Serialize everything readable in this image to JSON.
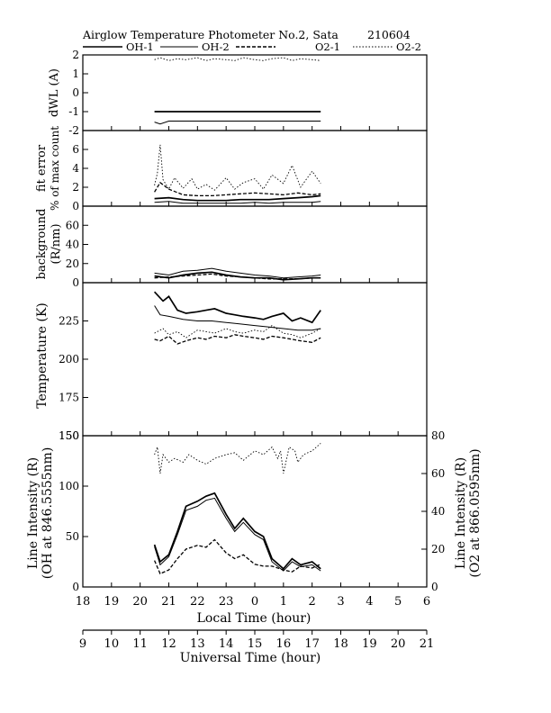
{
  "header": {
    "title": "Airglow Temperature Photometer No.2, Sata",
    "code": "210604"
  },
  "legend": [
    {
      "name": "OH-1",
      "style": "solid-thick"
    },
    {
      "name": "OH-2",
      "style": "solid"
    },
    {
      "name": "O2-1",
      "style": "dashed"
    },
    {
      "name": "O2-2",
      "style": "dotted"
    }
  ],
  "axes": {
    "local_time_label": "Local Time (hour)",
    "local_time_ticks": [
      "18",
      "19",
      "20",
      "21",
      "22",
      "23",
      "0",
      "1",
      "2",
      "3",
      "4",
      "5",
      "6"
    ],
    "ut_label": "Universal Time (hour)",
    "ut_ticks": [
      "9",
      "10",
      "11",
      "12",
      "13",
      "14",
      "15",
      "16",
      "17",
      "18",
      "19",
      "20",
      "21"
    ]
  },
  "chart_data": [
    {
      "type": "line",
      "ylabel": "dWL (A)",
      "ylim": [
        -2,
        2
      ],
      "yticks": [
        "2",
        "1",
        "0",
        "-1",
        "-2"
      ],
      "x_unit": "local time hours after 18:00",
      "series": [
        {
          "name": "OH-1",
          "x": [
            20.5,
            21,
            21.5,
            22,
            22.5,
            23,
            23.5,
            0,
            0.5,
            1,
            1.5,
            2,
            2.3
          ],
          "y": [
            -1.0,
            -1.0,
            -1.0,
            -1.0,
            -1.0,
            -1.0,
            -1.0,
            -1.0,
            -1.0,
            -1.0,
            -1.0,
            -1.0,
            -1.0
          ]
        },
        {
          "name": "OH-2",
          "x": [
            20.5,
            20.7,
            21,
            21.5,
            22,
            22.5,
            23,
            23.5,
            0,
            0.5,
            1,
            1.5,
            2,
            2.3
          ],
          "y": [
            -1.55,
            -1.65,
            -1.5,
            -1.5,
            -1.5,
            -1.5,
            -1.5,
            -1.5,
            -1.5,
            -1.5,
            -1.5,
            -1.5,
            -1.5,
            -1.5
          ]
        },
        {
          "name": "O2-2",
          "x": [
            20.5,
            20.7,
            21,
            21.3,
            21.6,
            22,
            22.3,
            22.6,
            23,
            23.3,
            23.6,
            0,
            0.3,
            0.6,
            1,
            1.3,
            1.6,
            2,
            2.3
          ],
          "y": [
            1.75,
            1.85,
            1.7,
            1.8,
            1.75,
            1.85,
            1.7,
            1.8,
            1.75,
            1.7,
            1.85,
            1.75,
            1.7,
            1.8,
            1.85,
            1.7,
            1.8,
            1.75,
            1.7
          ]
        }
      ]
    },
    {
      "type": "line",
      "ylabel": "fit error",
      "ylabel2": "% of max count",
      "ylim": [
        0,
        8
      ],
      "yticks": [
        "6",
        "4",
        "2",
        "0"
      ],
      "series": [
        {
          "name": "OH-1",
          "x": [
            20.5,
            21,
            21.5,
            22,
            22.5,
            23,
            23.5,
            0,
            0.5,
            1,
            1.5,
            2,
            2.3
          ],
          "y": [
            0.8,
            0.9,
            0.7,
            0.6,
            0.6,
            0.6,
            0.7,
            0.7,
            0.7,
            0.8,
            0.9,
            1.0,
            1.1
          ]
        },
        {
          "name": "OH-2",
          "x": [
            20.5,
            21,
            21.5,
            22,
            22.5,
            23,
            23.5,
            0,
            0.5,
            1,
            1.5,
            2,
            2.3
          ],
          "y": [
            0.4,
            0.5,
            0.3,
            0.3,
            0.3,
            0.3,
            0.3,
            0.4,
            0.3,
            0.4,
            0.4,
            0.4,
            0.5
          ]
        },
        {
          "name": "O2-1",
          "x": [
            20.5,
            20.7,
            21,
            21.5,
            22,
            22.5,
            23,
            23.5,
            0,
            0.5,
            1,
            1.5,
            2,
            2.3
          ],
          "y": [
            1.5,
            2.5,
            1.8,
            1.2,
            1.1,
            1.1,
            1.2,
            1.3,
            1.4,
            1.3,
            1.2,
            1.4,
            1.2,
            1.3
          ]
        },
        {
          "name": "O2-2",
          "x": [
            20.5,
            20.6,
            20.7,
            20.8,
            21,
            21.2,
            21.5,
            21.8,
            22,
            22.3,
            22.6,
            23,
            23.3,
            23.6,
            0,
            0.3,
            0.6,
            1,
            1.3,
            1.6,
            2,
            2.3
          ],
          "y": [
            2.2,
            3.5,
            6.5,
            2.8,
            1.8,
            3.0,
            1.9,
            2.9,
            1.8,
            2.3,
            1.7,
            3.0,
            1.8,
            2.5,
            2.9,
            1.8,
            3.3,
            2.4,
            4.3,
            2.0,
            3.7,
            2.4
          ]
        }
      ]
    },
    {
      "type": "line",
      "ylabel": "background",
      "ylabel2": "(R/nm)",
      "ylim": [
        0,
        80
      ],
      "yticks": [
        "60",
        "40",
        "20",
        "0"
      ],
      "series": [
        {
          "name": "OH-1",
          "x": [
            20.5,
            21,
            21.5,
            22,
            22.5,
            23,
            23.5,
            0,
            0.5,
            1,
            1.5,
            2,
            2.3
          ],
          "y": [
            7,
            5,
            8,
            10,
            11,
            8,
            6,
            5,
            5,
            3,
            4,
            5,
            5
          ]
        },
        {
          "name": "OH-2",
          "x": [
            20.5,
            21,
            21.5,
            22,
            22.5,
            23,
            23.5,
            0,
            0.5,
            1,
            1.5,
            2,
            2.3
          ],
          "y": [
            10,
            8,
            12,
            13,
            15,
            12,
            10,
            8,
            7,
            5,
            6,
            7,
            8
          ]
        },
        {
          "name": "O2-1",
          "x": [
            20.5,
            21,
            21.5,
            22,
            22.5,
            23,
            23.5,
            0,
            0.5,
            1,
            1.5,
            2,
            2.3
          ],
          "y": [
            5,
            6,
            7,
            8,
            9,
            7,
            6,
            5,
            4,
            4,
            4,
            5,
            5
          ]
        }
      ]
    },
    {
      "type": "line",
      "ylabel": "Temperature (K)",
      "ylim": [
        150,
        250
      ],
      "yticks": [
        "225",
        "200",
        "175",
        "150"
      ],
      "series": [
        {
          "name": "OH-1",
          "x": [
            20.5,
            20.8,
            21,
            21.3,
            21.6,
            22,
            22.3,
            22.6,
            23,
            23.3,
            23.6,
            0,
            0.3,
            0.6,
            1,
            1.3,
            1.6,
            2,
            2.3
          ],
          "y": [
            244,
            238,
            241,
            232,
            230,
            231,
            232,
            233,
            230,
            229,
            228,
            227,
            226,
            228,
            230,
            225,
            227,
            224,
            232
          ]
        },
        {
          "name": "OH-2",
          "x": [
            20.5,
            20.7,
            21,
            21.5,
            22,
            22.5,
            23,
            23.5,
            0,
            0.5,
            1,
            1.5,
            2,
            2.3
          ],
          "y": [
            235,
            229,
            228,
            226,
            225,
            225,
            224,
            223,
            222,
            221,
            220,
            219,
            219,
            220
          ]
        },
        {
          "name": "O2-1",
          "x": [
            20.5,
            20.7,
            21,
            21.3,
            21.6,
            22,
            22.3,
            22.6,
            23,
            23.3,
            23.6,
            0,
            0.3,
            0.6,
            1,
            1.3,
            1.6,
            2,
            2.3
          ],
          "y": [
            213,
            212,
            215,
            210,
            212,
            214,
            213,
            215,
            214,
            216,
            215,
            214,
            213,
            215,
            214,
            213,
            212,
            211,
            214
          ]
        },
        {
          "name": "O2-2",
          "x": [
            20.5,
            20.8,
            21,
            21.3,
            21.6,
            22,
            22.3,
            22.6,
            23,
            23.3,
            23.6,
            0,
            0.3,
            0.6,
            1,
            1.3,
            1.6,
            2,
            2.3
          ],
          "y": [
            217,
            220,
            216,
            218,
            214,
            219,
            218,
            217,
            220,
            218,
            217,
            219,
            218,
            222,
            217,
            216,
            214,
            217,
            220
          ]
        }
      ]
    },
    {
      "type": "line",
      "ylabel": "Line Intensity (R)",
      "ylabel2": "(OH at 846.5555nm)",
      "ylim": [
        0,
        150
      ],
      "yticks": [
        "150",
        "100",
        "50",
        "0"
      ],
      "y2label": "Line Intensity (R)",
      "y2label2": "(O2 at 866.0595nm)",
      "y2lim": [
        0,
        80
      ],
      "y2ticks": [
        "80",
        "60",
        "40",
        "20",
        "0"
      ],
      "series": [
        {
          "name": "OH-1",
          "axis": "left",
          "x": [
            20.5,
            20.7,
            21,
            21.3,
            21.6,
            22,
            22.3,
            22.6,
            23,
            23.3,
            23.6,
            0,
            0.3,
            0.6,
            1,
            1.3,
            1.6,
            2,
            2.3
          ],
          "y": [
            42,
            25,
            32,
            55,
            80,
            85,
            90,
            93,
            72,
            58,
            68,
            55,
            50,
            28,
            18,
            28,
            22,
            25,
            18
          ]
        },
        {
          "name": "OH-2",
          "axis": "left",
          "x": [
            20.5,
            20.7,
            21,
            21.3,
            21.6,
            22,
            22.3,
            22.6,
            23,
            23.3,
            23.6,
            0,
            0.3,
            0.6,
            1,
            1.3,
            1.6,
            2,
            2.3
          ],
          "y": [
            40,
            22,
            30,
            52,
            76,
            80,
            86,
            88,
            68,
            55,
            64,
            52,
            47,
            25,
            16,
            25,
            20,
            22,
            16
          ]
        },
        {
          "name": "O2-1",
          "axis": "right",
          "x": [
            20.5,
            20.7,
            21,
            21.3,
            21.6,
            22,
            22.3,
            22.6,
            23,
            23.3,
            23.6,
            0,
            0.3,
            0.6,
            1,
            1.3,
            1.6,
            2,
            2.3
          ],
          "y": [
            14,
            7,
            9,
            15,
            20,
            22,
            21,
            25,
            18,
            15,
            17,
            12,
            11,
            11,
            9,
            8,
            11,
            10,
            12
          ]
        },
        {
          "name": "O2-2",
          "axis": "right",
          "x": [
            20.5,
            20.6,
            20.7,
            20.8,
            21,
            21.2,
            21.5,
            21.7,
            22,
            22.3,
            22.6,
            23,
            23.3,
            23.6,
            0,
            0.3,
            0.6,
            0.8,
            0.9,
            1.0,
            1.2,
            1.4,
            1.5,
            1.7,
            2,
            2.3
          ],
          "y": [
            70,
            74,
            60,
            70,
            66,
            68,
            66,
            70,
            67,
            65,
            68,
            70,
            71,
            67,
            72,
            70,
            74,
            68,
            72,
            60,
            74,
            72,
            66,
            70,
            72,
            76
          ]
        }
      ]
    }
  ]
}
